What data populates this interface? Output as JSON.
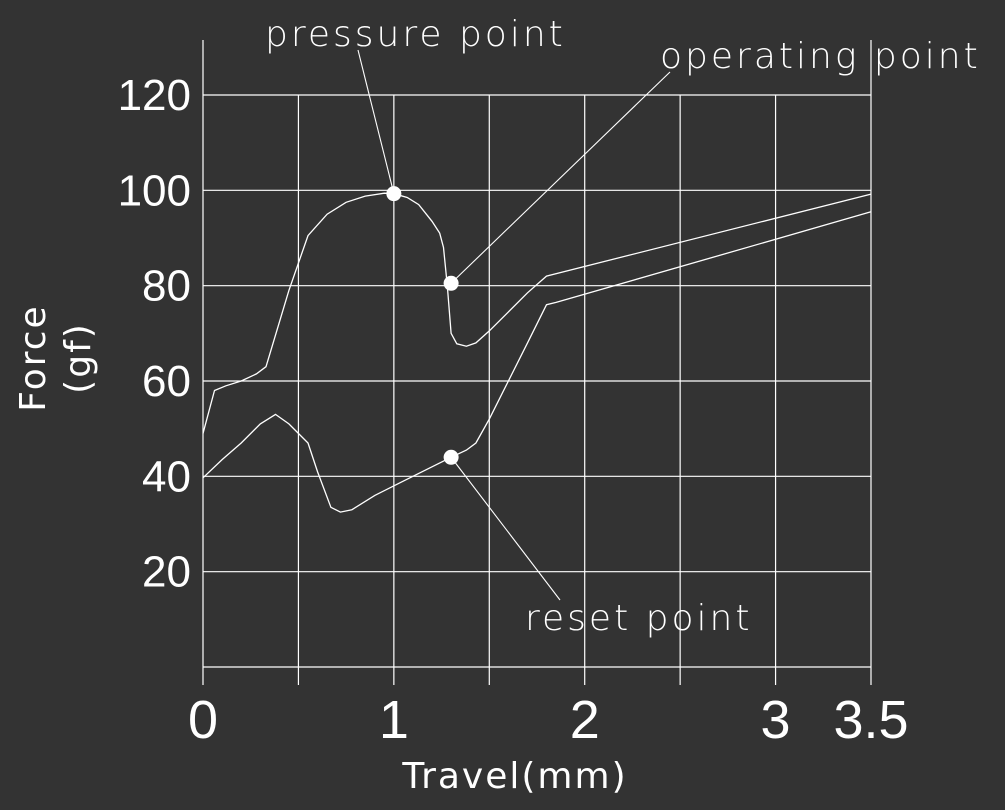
{
  "chart_data": {
    "type": "line",
    "xlabel": "Travel(mm)",
    "ylabel": [
      "Force",
      "(gf)"
    ],
    "xlim": [
      0,
      3.5
    ],
    "ylim": [
      0,
      120
    ],
    "x_ticks": [
      0,
      1,
      2,
      3,
      3.5
    ],
    "x_tick_labels": [
      "0",
      "1",
      "2",
      "3",
      "3.5"
    ],
    "x_minor_ticks": [
      0.5,
      1.5,
      2.5
    ],
    "y_ticks": [
      20,
      40,
      60,
      80,
      100,
      120
    ],
    "y_tick_labels": [
      "20",
      "40",
      "60",
      "80",
      "100",
      "120"
    ],
    "grid": true,
    "series": [
      {
        "x": [
          0,
          0.06,
          0.12,
          0.2,
          0.28,
          0.33,
          0.45,
          0.55,
          0.65,
          0.75,
          0.85,
          0.95,
          1.0,
          1.07,
          1.13,
          1.2,
          1.24,
          1.26,
          1.27,
          1.28,
          1.3,
          1.33,
          1.38,
          1.43,
          1.5,
          1.6,
          1.7,
          1.8,
          3.5
        ],
        "y": [
          49,
          58,
          59,
          60,
          61.5,
          63,
          79,
          90.5,
          95,
          97.5,
          98.8,
          99.4,
          99.3,
          98.5,
          97,
          93.5,
          91,
          88,
          84,
          80,
          70,
          67.8,
          67.3,
          68,
          70.5,
          74.5,
          78.5,
          82,
          99.2
        ]
      },
      {
        "x": [
          0,
          0.1,
          0.2,
          0.3,
          0.38,
          0.45,
          0.55,
          0.6,
          0.67,
          0.72,
          0.78,
          0.9,
          1.05,
          1.2,
          1.3,
          1.38,
          1.43,
          1.5,
          1.6,
          1.7,
          1.8,
          1.85,
          3.5
        ],
        "y": [
          39.7,
          43.5,
          47,
          51,
          53,
          51,
          47,
          41,
          33.5,
          32.5,
          33,
          36,
          39,
          42,
          44,
          45.5,
          47,
          52,
          60,
          68,
          76,
          76.5,
          95.5
        ]
      }
    ],
    "annotations": [
      {
        "text": "pressure point",
        "x": 1.0,
        "y": 99.3
      },
      {
        "text": "operating point",
        "x": 1.3,
        "y": 80.5
      },
      {
        "text": "reset point",
        "x": 1.3,
        "y": 44
      }
    ]
  }
}
